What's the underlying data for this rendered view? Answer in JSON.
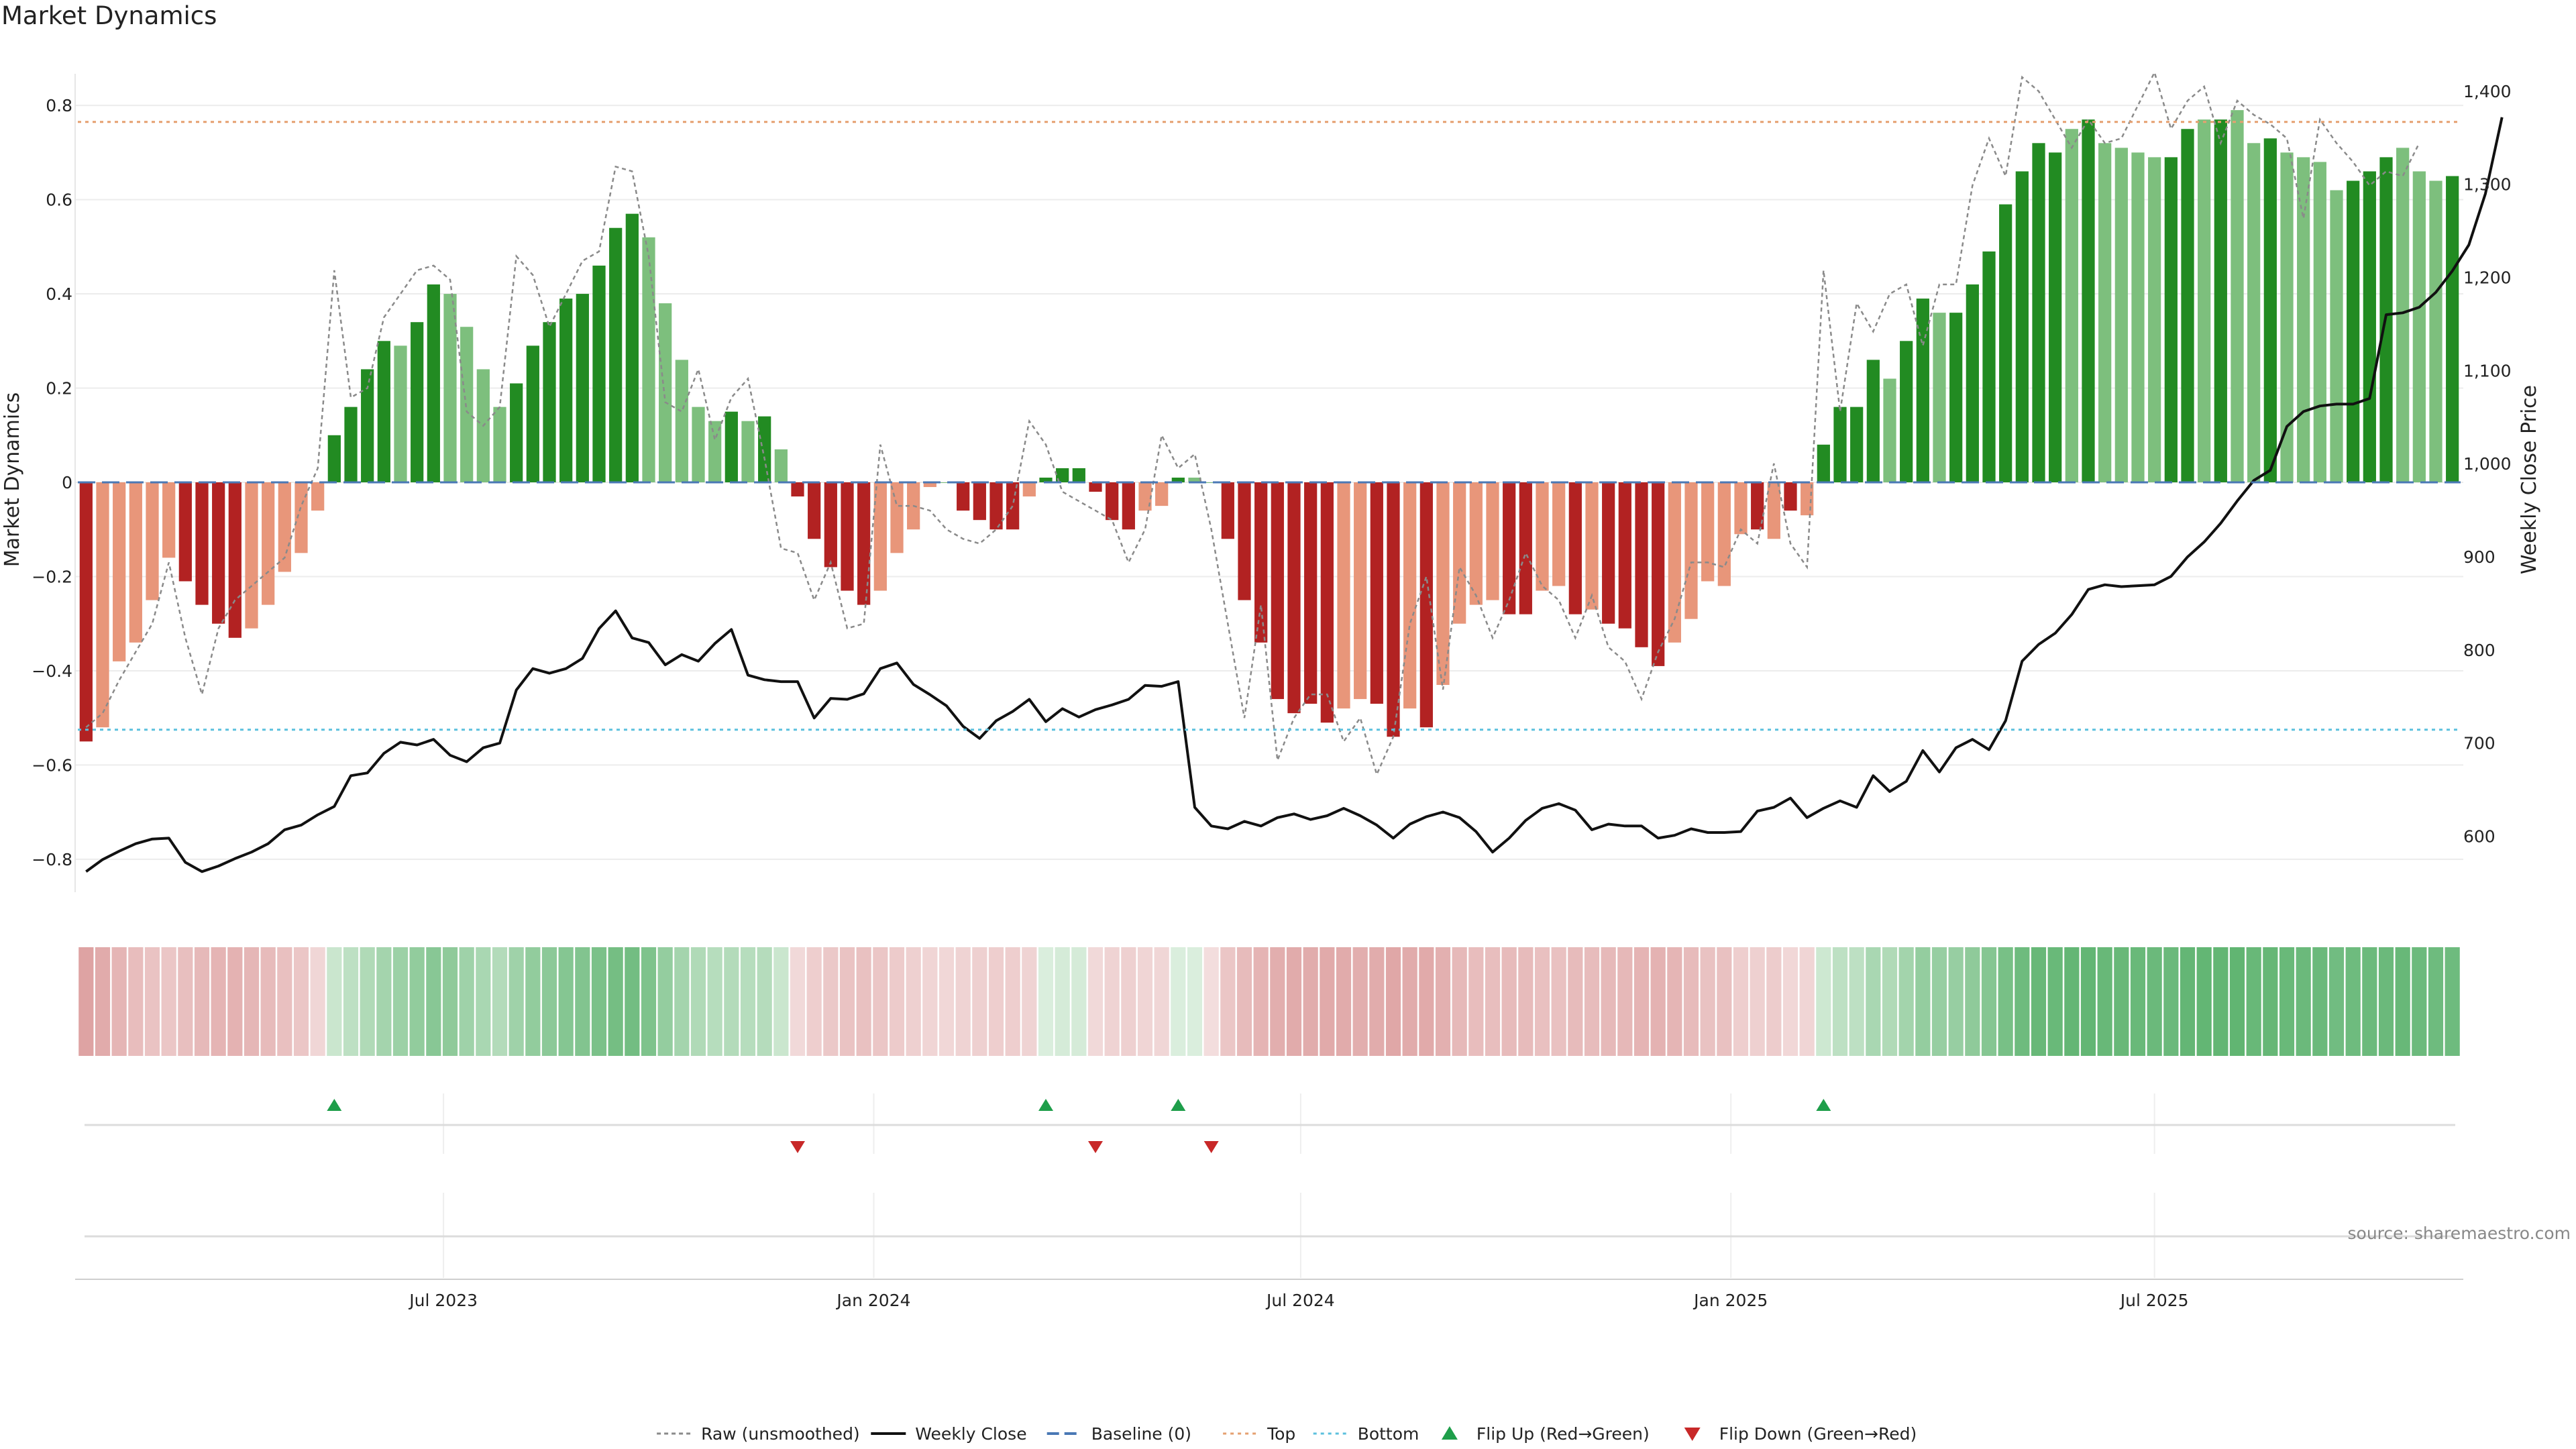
{
  "title": "Market Dynamics",
  "source": "source: sharemaestro.com",
  "chart_data": {
    "type": "bar",
    "title": "Market Dynamics",
    "ylabel": "Market Dynamics",
    "y2label": "Weekly Close Price",
    "ylim": [
      -0.85,
      0.85
    ],
    "y2lim": [
      550,
      1410
    ],
    "yticks": [
      "0.8",
      "0.6",
      "0.4",
      "0.2",
      "0",
      "−0.2",
      "−0.4",
      "−0.6",
      "−0.8"
    ],
    "yticks_values": [
      0.8,
      0.6,
      0.4,
      0.2,
      0,
      -0.2,
      -0.4,
      -0.6,
      -0.8
    ],
    "y2ticks": [
      "1,400",
      "1,300",
      "1,200",
      "1,100",
      "1,000",
      "900",
      "800",
      "700",
      "600"
    ],
    "y2ticks_values": [
      1400,
      1300,
      1200,
      1100,
      1000,
      900,
      800,
      700,
      600
    ],
    "xticks": [
      {
        "label": "Jul 2023",
        "index": 21.6
      },
      {
        "label": "Jan 2024",
        "index": 47.6
      },
      {
        "label": "Jul 2024",
        "index": 73.4
      },
      {
        "label": "Jan 2025",
        "index": 99.4
      },
      {
        "label": "Jul 2025",
        "index": 125.0
      }
    ],
    "top_line": 0.765,
    "bottom_line": -0.525,
    "bars": [
      -0.55,
      -0.52,
      -0.38,
      -0.34,
      -0.25,
      -0.16,
      -0.21,
      -0.26,
      -0.3,
      -0.33,
      -0.31,
      -0.26,
      -0.19,
      -0.15,
      -0.06,
      0.1,
      0.16,
      0.24,
      0.3,
      0.29,
      0.34,
      0.42,
      0.4,
      0.33,
      0.24,
      0.16,
      0.21,
      0.29,
      0.34,
      0.39,
      0.4,
      0.46,
      0.54,
      0.57,
      0.52,
      0.38,
      0.26,
      0.16,
      0.13,
      0.15,
      0.13,
      0.14,
      0.07,
      -0.03,
      -0.12,
      -0.18,
      -0.23,
      -0.26,
      -0.23,
      -0.15,
      -0.1,
      -0.01,
      -0.0,
      -0.06,
      -0.08,
      -0.1,
      -0.1,
      -0.03,
      0.01,
      0.03,
      0.03,
      -0.02,
      -0.08,
      -0.1,
      -0.06,
      -0.05,
      0.01,
      0.01,
      0.0,
      -0.12,
      -0.25,
      -0.34,
      -0.46,
      -0.49,
      -0.47,
      -0.51,
      -0.48,
      -0.46,
      -0.47,
      -0.54,
      -0.48,
      -0.52,
      -0.43,
      -0.3,
      -0.26,
      -0.25,
      -0.28,
      -0.28,
      -0.23,
      -0.22,
      -0.28,
      -0.27,
      -0.3,
      -0.31,
      -0.35,
      -0.39,
      -0.34,
      -0.29,
      -0.21,
      -0.22,
      -0.11,
      -0.1,
      -0.12,
      -0.06,
      -0.07,
      0.08,
      0.16,
      0.16,
      0.26,
      0.22,
      0.3,
      0.39,
      0.36,
      0.36,
      0.42,
      0.49,
      0.59,
      0.66,
      0.72,
      0.7,
      0.75,
      0.77,
      0.72,
      0.71,
      0.7,
      0.69,
      0.69,
      0.75,
      0.77,
      0.77,
      0.79,
      0.72,
      0.73,
      0.7,
      0.69,
      0.68,
      0.62,
      0.64,
      0.66,
      0.69,
      0.71,
      0.66,
      0.64,
      0.65
    ],
    "bar_shades": [
      "dark",
      "light",
      "light",
      "light",
      "light",
      "light",
      "dark",
      "dark",
      "dark",
      "dark",
      "light",
      "light",
      "light",
      "light",
      "light",
      "dark",
      "dark",
      "dark",
      "dark",
      "light",
      "dark",
      "dark",
      "light",
      "light",
      "light",
      "light",
      "dark",
      "dark",
      "dark",
      "dark",
      "dark",
      "dark",
      "dark",
      "dark",
      "light",
      "light",
      "light",
      "light",
      "light",
      "dark",
      "light",
      "dark",
      "light",
      "dark",
      "dark",
      "dark",
      "dark",
      "dark",
      "light",
      "light",
      "light",
      "light",
      "light",
      "dark",
      "dark",
      "dark",
      "dark",
      "light",
      "dark",
      "dark",
      "dark",
      "dark",
      "dark",
      "dark",
      "light",
      "light",
      "dark",
      "light",
      "light",
      "dark",
      "dark",
      "dark",
      "dark",
      "dark",
      "dark",
      "dark",
      "light",
      "light",
      "dark",
      "dark",
      "light",
      "dark",
      "light",
      "light",
      "light",
      "light",
      "dark",
      "dark",
      "light",
      "light",
      "dark",
      "light",
      "dark",
      "dark",
      "dark",
      "dark",
      "light",
      "light",
      "light",
      "light",
      "light",
      "dark",
      "light",
      "dark",
      "light",
      "dark",
      "dark",
      "dark",
      "dark",
      "light",
      "dark",
      "dark",
      "light",
      "dark",
      "dark",
      "dark",
      "dark",
      "dark",
      "dark",
      "dark",
      "light",
      "dark",
      "light",
      "light",
      "light",
      "light",
      "dark",
      "dark",
      "light",
      "dark",
      "light",
      "light",
      "dark",
      "light",
      "light",
      "light",
      "light",
      "dark",
      "dark",
      "dark",
      "light",
      "light",
      "light",
      "dark"
    ],
    "raw": [
      -0.52,
      -0.49,
      -0.42,
      -0.36,
      -0.3,
      -0.17,
      -0.33,
      -0.45,
      -0.31,
      -0.25,
      -0.22,
      -0.19,
      -0.16,
      -0.05,
      0.03,
      0.45,
      0.18,
      0.2,
      0.35,
      0.4,
      0.45,
      0.46,
      0.43,
      0.15,
      0.12,
      0.16,
      0.48,
      0.44,
      0.33,
      0.4,
      0.47,
      0.49,
      0.67,
      0.66,
      0.48,
      0.17,
      0.15,
      0.24,
      0.09,
      0.18,
      0.22,
      0.05,
      -0.14,
      -0.15,
      -0.25,
      -0.17,
      -0.31,
      -0.3,
      0.08,
      -0.05,
      -0.05,
      -0.06,
      -0.1,
      -0.12,
      -0.13,
      -0.1,
      -0.05,
      0.13,
      0.08,
      -0.02,
      -0.04,
      -0.06,
      -0.08,
      -0.17,
      -0.1,
      0.1,
      0.03,
      0.06,
      -0.1,
      -0.3,
      -0.5,
      -0.26,
      -0.59,
      -0.5,
      -0.45,
      -0.45,
      -0.55,
      -0.5,
      -0.62,
      -0.54,
      -0.3,
      -0.2,
      -0.44,
      -0.18,
      -0.24,
      -0.33,
      -0.25,
      -0.15,
      -0.22,
      -0.25,
      -0.33,
      -0.24,
      -0.35,
      -0.38,
      -0.46,
      -0.36,
      -0.29,
      -0.17,
      -0.17,
      -0.18,
      -0.1,
      -0.13,
      0.04,
      -0.13,
      -0.18,
      0.45,
      0.15,
      0.38,
      0.32,
      0.4,
      0.42,
      0.29,
      0.42,
      0.42,
      0.63,
      0.73,
      0.65,
      0.86,
      0.83,
      0.77,
      0.71,
      0.77,
      0.72,
      0.73,
      0.8,
      0.87,
      0.75,
      0.81,
      0.84,
      0.72,
      0.81,
      0.78,
      0.76,
      0.73,
      0.56,
      0.77,
      0.72,
      0.68,
      0.63,
      0.66,
      0.65,
      0.72
    ],
    "close": [
      562,
      575,
      584,
      592,
      597,
      598,
      572,
      562,
      568,
      576,
      583,
      592,
      607,
      612,
      623,
      632,
      665,
      668,
      689,
      701,
      698,
      704,
      687,
      680,
      695,
      700,
      757,
      780,
      775,
      780,
      791,
      823,
      842,
      813,
      808,
      784,
      795,
      788,
      807,
      822,
      773,
      768,
      766,
      766,
      727,
      748,
      747,
      753,
      780,
      786,
      763,
      752,
      740,
      718,
      705,
      724,
      734,
      747,
      723,
      737,
      728,
      736,
      741,
      747,
      762,
      761,
      766,
      631,
      611,
      608,
      616,
      611,
      620,
      624,
      618,
      622,
      630,
      622,
      612,
      598,
      613,
      621,
      626,
      620,
      605,
      583,
      598,
      617,
      630,
      635,
      628,
      607,
      613,
      611,
      611,
      598,
      601,
      608,
      604,
      604,
      605,
      627,
      631,
      641,
      620,
      630,
      638,
      631,
      665,
      648,
      659,
      692,
      669,
      695,
      704,
      693,
      724,
      788,
      806,
      818,
      838,
      865,
      870,
      868,
      869,
      870,
      879,
      900,
      916,
      936,
      960,
      982,
      993,
      1040,
      1056,
      1062,
      1064,
      1064,
      1070,
      1160,
      1162,
      1168,
      1184,
      1207,
      1235,
      1290,
      1372
    ],
    "heat_strip": [
      -0.62,
      -0.55,
      -0.45,
      -0.38,
      -0.32,
      -0.3,
      -0.36,
      -0.42,
      -0.46,
      -0.48,
      -0.44,
      -0.4,
      -0.35,
      -0.3,
      -0.15,
      0.22,
      0.3,
      0.38,
      0.45,
      0.5,
      0.56,
      0.62,
      0.58,
      0.48,
      0.42,
      0.36,
      0.48,
      0.56,
      0.6,
      0.64,
      0.66,
      0.7,
      0.74,
      0.75,
      0.68,
      0.55,
      0.45,
      0.38,
      0.34,
      0.36,
      0.34,
      0.35,
      0.22,
      -0.12,
      -0.22,
      -0.28,
      -0.32,
      -0.34,
      -0.3,
      -0.25,
      -0.2,
      -0.16,
      -0.14,
      -0.18,
      -0.2,
      -0.22,
      -0.22,
      -0.18,
      0.12,
      0.15,
      0.15,
      -0.12,
      -0.18,
      -0.2,
      -0.16,
      -0.15,
      0.12,
      0.12,
      -0.08,
      -0.3,
      -0.4,
      -0.46,
      -0.52,
      -0.55,
      -0.54,
      -0.56,
      -0.55,
      -0.52,
      -0.54,
      -0.58,
      -0.55,
      -0.56,
      -0.5,
      -0.42,
      -0.38,
      -0.37,
      -0.4,
      -0.4,
      -0.35,
      -0.34,
      -0.4,
      -0.39,
      -0.42,
      -0.43,
      -0.46,
      -0.48,
      -0.45,
      -0.4,
      -0.33,
      -0.34,
      -0.22,
      -0.2,
      -0.24,
      -0.14,
      -0.16,
      0.2,
      0.3,
      0.3,
      0.42,
      0.38,
      0.46,
      0.55,
      0.53,
      0.53,
      0.58,
      0.64,
      0.72,
      0.78,
      0.82,
      0.81,
      0.84,
      0.85,
      0.82,
      0.82,
      0.81,
      0.8,
      0.8,
      0.84,
      0.85,
      0.85,
      0.86,
      0.82,
      0.83,
      0.81,
      0.8,
      0.8,
      0.76,
      0.78,
      0.79,
      0.8,
      0.82,
      0.79,
      0.78,
      0.78
    ],
    "flip_up_index": [
      15,
      58,
      66,
      105
    ],
    "flip_down_index": [
      43,
      61,
      68
    ],
    "legend": {
      "position": "bottom-center",
      "entries": [
        {
          "label": "Raw (unsmoothed)",
          "style": "dotted-gray"
        },
        {
          "label": "Weekly Close",
          "style": "solid-black"
        },
        {
          "label": "Baseline (0)",
          "style": "dashed-blue"
        },
        {
          "label": "Top",
          "style": "dotted-orange"
        },
        {
          "label": "Bottom",
          "style": "dotted-cyan"
        },
        {
          "label": "Flip Up (Red→Green)",
          "style": "triangle-up-green"
        },
        {
          "label": "Flip Down (Green→Red)",
          "style": "triangle-down-red"
        }
      ]
    },
    "colors": {
      "green_dark": "#228b22",
      "green_light": "#7dbf7d",
      "red_dark": "#b22222",
      "red_light": "#e8967a",
      "raw": "#8a8a8a",
      "close": "#111111",
      "baseline": "#4a78b5",
      "top": "#e5a070",
      "bottom": "#5bc0de",
      "flip_up": "#1e9e4a",
      "flip_down": "#c82828"
    },
    "grid": true
  }
}
